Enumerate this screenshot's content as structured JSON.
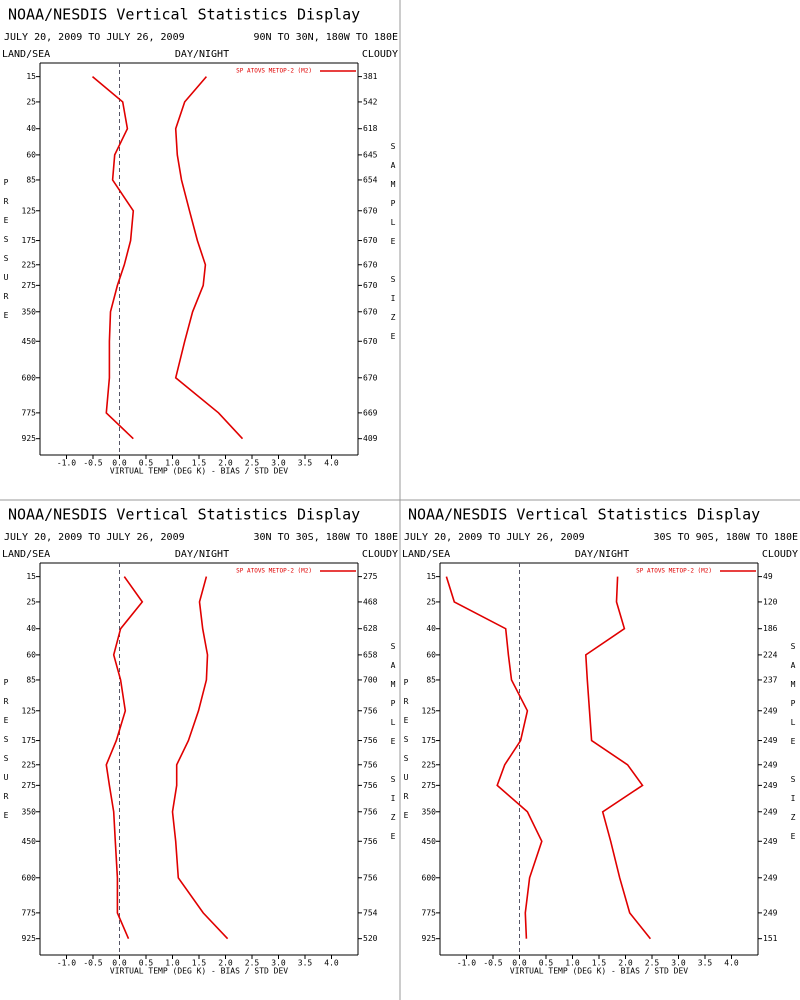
{
  "chart_data": [
    {
      "type": "line",
      "title": "NOAA/NESDIS Vertical Statistics Display",
      "date_range": "JULY 20, 2009 TO JULY 26, 2009",
      "region": "90N TO 30N, 180W TO 180E",
      "left_label": "LAND/SEA",
      "center_label": "DAY/NIGHT",
      "right_label": "CLOUDY",
      "y_label": "PRESSURE",
      "y2_label": "SAMPLE SIZE",
      "x_label": "VIRTUAL TEMP (DEG K) - BIAS / STD DEV",
      "xlim": [
        -1.5,
        4.5
      ],
      "xticks": [
        {
          "value": -1.0,
          "label": "-1.0"
        },
        {
          "value": -0.5,
          "label": "-0.5"
        },
        {
          "value": 0,
          "label": "0.0"
        },
        {
          "value": 0.5,
          "label": "0.5"
        },
        {
          "value": 1.0,
          "label": "1.0"
        },
        {
          "value": 1.5,
          "label": "1.5"
        },
        {
          "value": 2.0,
          "label": "2.0"
        },
        {
          "value": 2.5,
          "label": "2.5"
        },
        {
          "value": 3.0,
          "label": "3.0"
        },
        {
          "value": 3.5,
          "label": "3.5"
        },
        {
          "value": 4.0,
          "label": "4.0"
        }
      ],
      "ylim": [
        10,
        1030
      ],
      "y_exponent": 0.286,
      "y_inverted": true,
      "yticks": [
        15,
        25,
        40,
        60,
        85,
        125,
        175,
        225,
        275,
        350,
        450,
        600,
        775,
        925
      ],
      "y": [
        15,
        25,
        40,
        60,
        85,
        125,
        175,
        225,
        275,
        350,
        450,
        600,
        775,
        925
      ],
      "sample_size": [
        381,
        542,
        618,
        645,
        654,
        670,
        670,
        670,
        670,
        670,
        670,
        670,
        669,
        409
      ],
      "series": [
        {
          "name": "SP ATOVS METOP-2 (M2)",
          "color": "#e00000",
          "bias": [
            -0.51,
            0.06,
            0.15,
            -0.09,
            -0.13,
            0.26,
            0.21,
            0.09,
            -0.04,
            -0.17,
            -0.19,
            -0.19,
            -0.25,
            0.26
          ],
          "std_dev": [
            1.64,
            1.23,
            1.06,
            1.09,
            1.17,
            1.32,
            1.47,
            1.62,
            1.58,
            1.38,
            1.23,
            1.06,
            1.87,
            2.32
          ]
        }
      ]
    },
    {
      "type": "line",
      "title": "NOAA/NESDIS Vertical Statistics Display",
      "date_range": "JULY 20, 2009 TO JULY 26, 2009",
      "region": "30N TO 30S, 180W TO 180E",
      "left_label": "LAND/SEA",
      "center_label": "DAY/NIGHT",
      "right_label": "CLOUDY",
      "y_label": "PRESSURE",
      "y2_label": "SAMPLE SIZE",
      "x_label": "VIRTUAL TEMP (DEG K) - BIAS / STD DEV",
      "xlim": [
        -1.5,
        4.5
      ],
      "xticks": [
        {
          "value": -1.0,
          "label": "-1.0"
        },
        {
          "value": -0.5,
          "label": "-0.5"
        },
        {
          "value": 0,
          "label": "0.0"
        },
        {
          "value": 0.5,
          "label": "0.5"
        },
        {
          "value": 1.0,
          "label": "1.0"
        },
        {
          "value": 1.5,
          "label": "1.5"
        },
        {
          "value": 2.0,
          "label": "2.0"
        },
        {
          "value": 2.5,
          "label": "2.5"
        },
        {
          "value": 3.0,
          "label": "3.0"
        },
        {
          "value": 3.5,
          "label": "3.5"
        },
        {
          "value": 4.0,
          "label": "4.0"
        }
      ],
      "ylim": [
        10,
        1030
      ],
      "y_exponent": 0.286,
      "y_inverted": true,
      "yticks": [
        15,
        25,
        40,
        60,
        85,
        125,
        175,
        225,
        275,
        350,
        450,
        600,
        775,
        925
      ],
      "y": [
        15,
        25,
        40,
        60,
        85,
        125,
        175,
        225,
        275,
        350,
        450,
        600,
        775,
        925
      ],
      "sample_size": [
        275,
        468,
        628,
        658,
        700,
        756,
        756,
        756,
        756,
        756,
        756,
        756,
        754,
        520
      ],
      "series": [
        {
          "name": "SP ATOVS METOP-2 (M2)",
          "color": "#e00000",
          "bias": [
            0.09,
            0.43,
            0.02,
            -0.11,
            0.02,
            0.11,
            -0.06,
            -0.25,
            -0.19,
            -0.11,
            -0.08,
            -0.04,
            -0.04,
            0.17
          ],
          "std_dev": [
            1.64,
            1.51,
            1.57,
            1.66,
            1.64,
            1.49,
            1.3,
            1.08,
            1.08,
            1.0,
            1.06,
            1.11,
            1.58,
            2.04
          ]
        }
      ]
    },
    {
      "type": "line",
      "title": "NOAA/NESDIS Vertical Statistics Display",
      "date_range": "JULY 20, 2009 TO JULY 26, 2009",
      "region": "30S TO 90S, 180W TO 180E",
      "left_label": "LAND/SEA",
      "center_label": "DAY/NIGHT",
      "right_label": "CLOUDY",
      "y_label": "PRESSURE",
      "y2_label": "SAMPLE SIZE",
      "x_label": "VIRTUAL TEMP (DEG K) - BIAS / STD DEV",
      "xlim": [
        -1.5,
        4.5
      ],
      "xticks": [
        {
          "value": -1.0,
          "label": "-1.0"
        },
        {
          "value": -0.5,
          "label": "-0.5"
        },
        {
          "value": 0,
          "label": "0.0"
        },
        {
          "value": 0.5,
          "label": "0.5"
        },
        {
          "value": 1.0,
          "label": "1.0"
        },
        {
          "value": 1.5,
          "label": "1.5"
        },
        {
          "value": 2.0,
          "label": "2.0"
        },
        {
          "value": 2.5,
          "label": "2.5"
        },
        {
          "value": 3.0,
          "label": "3.0"
        },
        {
          "value": 3.5,
          "label": "3.5"
        },
        {
          "value": 4.0,
          "label": "4.0"
        }
      ],
      "ylim": [
        10,
        1030
      ],
      "y_exponent": 0.286,
      "y_inverted": true,
      "yticks": [
        15,
        25,
        40,
        60,
        85,
        125,
        175,
        225,
        275,
        350,
        450,
        600,
        775,
        925
      ],
      "y": [
        15,
        25,
        40,
        60,
        85,
        125,
        175,
        225,
        275,
        350,
        450,
        600,
        775,
        925
      ],
      "sample_size": [
        49,
        120,
        186,
        224,
        237,
        249,
        249,
        249,
        249,
        249,
        249,
        249,
        249,
        151
      ],
      "series": [
        {
          "name": "SP ATOVS METOP-2 (M2)",
          "color": "#e00000",
          "bias": [
            -1.38,
            -1.23,
            -0.26,
            -0.21,
            -0.15,
            0.15,
            0.02,
            -0.28,
            -0.42,
            0.15,
            0.42,
            0.19,
            0.11,
            0.13
          ],
          "std_dev": [
            1.85,
            1.83,
            1.98,
            1.25,
            1.28,
            1.32,
            1.36,
            2.04,
            2.32,
            1.57,
            1.72,
            1.89,
            2.08,
            2.47
          ]
        }
      ]
    }
  ]
}
